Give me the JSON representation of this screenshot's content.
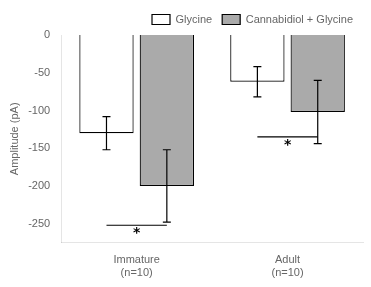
{
  "chart_data": {
    "type": "bar",
    "categories": [
      "Immature\n(n=10)",
      "Adult\n(n=10)"
    ],
    "series": [
      {
        "name": "Glycine",
        "color": "#ffffff",
        "values": [
          -130,
          -62
        ],
        "errors": [
          22,
          20
        ]
      },
      {
        "name": "Cannabidiol + Glycine",
        "color": "#aaaaaa",
        "values": [
          -200,
          -102
        ],
        "errors": [
          48,
          42
        ]
      }
    ],
    "ylabel": "Amplitude (pA)",
    "ylim": [
      -275,
      0
    ],
    "yticks": [
      0,
      -50,
      -100,
      -150,
      -200,
      -250
    ],
    "grid": false,
    "legend": "upper right",
    "annotations": [
      {
        "text": "*",
        "category": "Immature\n(n=10)",
        "y": -252
      },
      {
        "text": "*",
        "category": "Adult\n(n=10)",
        "y": -135
      }
    ]
  }
}
